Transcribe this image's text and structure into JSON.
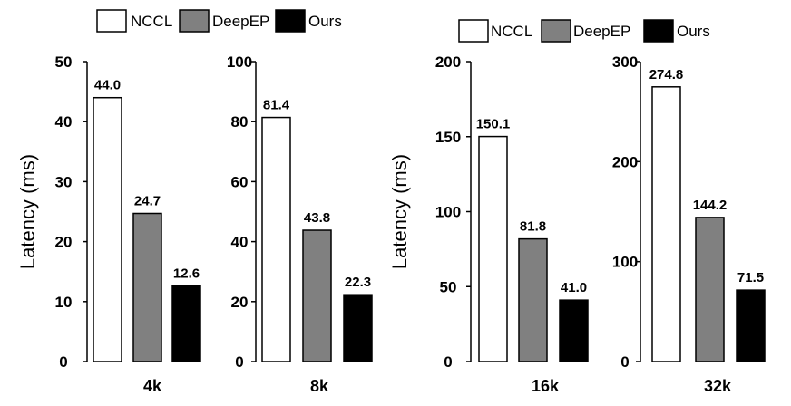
{
  "chart_data": [
    {
      "type": "bar",
      "group": "left",
      "category": "4k",
      "series_names": [
        "NCCL",
        "DeepEP",
        "Ours"
      ],
      "values": [
        44.0,
        24.7,
        12.6
      ],
      "value_labels": [
        "44.0",
        "24.7",
        "12.6"
      ],
      "ylim": [
        0,
        50
      ],
      "yticks": [
        "0",
        "10",
        "20",
        "30",
        "40",
        "50"
      ],
      "ylabel": "Latency (ms)"
    },
    {
      "type": "bar",
      "group": "left",
      "category": "8k",
      "series_names": [
        "NCCL",
        "DeepEP",
        "Ours"
      ],
      "values": [
        81.4,
        43.8,
        22.3
      ],
      "value_labels": [
        "81.4",
        "43.8",
        "22.3"
      ],
      "ylim": [
        0,
        100
      ],
      "yticks": [
        "0",
        "20",
        "40",
        "60",
        "80",
        "100"
      ],
      "ylabel": ""
    },
    {
      "type": "bar",
      "group": "right",
      "category": "16k",
      "series_names": [
        "NCCL",
        "DeepEP",
        "Ours"
      ],
      "values": [
        150.1,
        81.8,
        41.0
      ],
      "value_labels": [
        "150.1",
        "81.8",
        "41.0"
      ],
      "ylim": [
        0,
        200
      ],
      "yticks": [
        "0",
        "50",
        "100",
        "150",
        "200"
      ],
      "ylabel": "Latency (ms)"
    },
    {
      "type": "bar",
      "group": "right",
      "category": "32k",
      "series_names": [
        "NCCL",
        "DeepEP",
        "Ours"
      ],
      "values": [
        274.8,
        144.2,
        71.5
      ],
      "value_labels": [
        "274.8",
        "144.2",
        "71.5"
      ],
      "ylim": [
        0,
        300
      ],
      "yticks": [
        "0",
        "100",
        "200",
        "300"
      ],
      "ylabel": ""
    }
  ],
  "legends": [
    {
      "entries": [
        {
          "label": "NCCL",
          "color": "#ffffff"
        },
        {
          "label": "DeepEP",
          "color": "#808080"
        },
        {
          "label": "Ours",
          "color": "#000000"
        }
      ]
    },
    {
      "entries": [
        {
          "label": "NCCL",
          "color": "#ffffff"
        },
        {
          "label": "DeepEP",
          "color": "#808080"
        },
        {
          "label": "Ours",
          "color": "#000000"
        }
      ]
    }
  ]
}
